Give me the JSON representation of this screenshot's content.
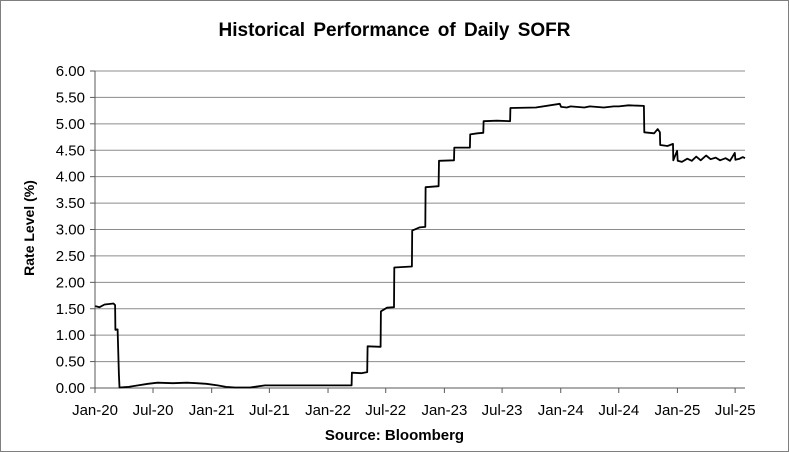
{
  "chart_data": {
    "type": "line",
    "title": "Historical  Performance of Daily  SOFR",
    "ylabel": "Rate Level (%)",
    "xlabel": "",
    "source": "Source: Bloomberg",
    "ylim": [
      0,
      6
    ],
    "xlim": [
      "2020-01-01",
      "2025-08-01"
    ],
    "grid": true,
    "legend": "none",
    "line_color": "#000000",
    "y_ticks": [
      "0.00",
      "0.50",
      "1.00",
      "1.50",
      "2.00",
      "2.50",
      "3.00",
      "3.50",
      "4.00",
      "4.50",
      "5.00",
      "5.50",
      "6.00"
    ],
    "x_ticks": [
      {
        "label": "Jan-20",
        "date": "2020-01-01"
      },
      {
        "label": "Jul-20",
        "date": "2020-07-01"
      },
      {
        "label": "Jan-21",
        "date": "2021-01-01"
      },
      {
        "label": "Jul-21",
        "date": "2021-07-01"
      },
      {
        "label": "Jan-22",
        "date": "2022-01-01"
      },
      {
        "label": "Jul-22",
        "date": "2022-07-01"
      },
      {
        "label": "Jan-23",
        "date": "2023-01-01"
      },
      {
        "label": "Jul-23",
        "date": "2023-07-01"
      },
      {
        "label": "Jan-24",
        "date": "2024-01-01"
      },
      {
        "label": "Jul-24",
        "date": "2024-07-01"
      },
      {
        "label": "Jan-25",
        "date": "2025-01-01"
      },
      {
        "label": "Jul-25",
        "date": "2025-07-01"
      }
    ],
    "series": [
      {
        "values": [
          [
            "2020-01-02",
            1.55
          ],
          [
            "2020-01-15",
            1.53
          ],
          [
            "2020-01-31",
            1.58
          ],
          [
            "2020-02-15",
            1.59
          ],
          [
            "2020-02-28",
            1.6
          ],
          [
            "2020-03-04",
            1.57
          ],
          [
            "2020-03-05",
            1.1
          ],
          [
            "2020-03-12",
            1.11
          ],
          [
            "2020-03-16",
            0.26
          ],
          [
            "2020-03-18",
            0.01
          ],
          [
            "2020-04-15",
            0.02
          ],
          [
            "2020-05-15",
            0.05
          ],
          [
            "2020-06-15",
            0.08
          ],
          [
            "2020-07-15",
            0.1
          ],
          [
            "2020-09-01",
            0.09
          ],
          [
            "2020-10-15",
            0.1
          ],
          [
            "2020-11-15",
            0.09
          ],
          [
            "2020-12-15",
            0.08
          ],
          [
            "2021-01-20",
            0.05
          ],
          [
            "2021-02-15",
            0.02
          ],
          [
            "2021-03-15",
            0.01
          ],
          [
            "2021-05-01",
            0.01
          ],
          [
            "2021-06-17",
            0.05
          ],
          [
            "2021-09-01",
            0.05
          ],
          [
            "2021-12-15",
            0.05
          ],
          [
            "2022-03-16",
            0.05
          ],
          [
            "2022-03-17",
            0.29
          ],
          [
            "2022-04-15",
            0.28
          ],
          [
            "2022-05-04",
            0.3
          ],
          [
            "2022-05-05",
            0.79
          ],
          [
            "2022-06-15",
            0.78
          ],
          [
            "2022-06-16",
            1.45
          ],
          [
            "2022-07-05",
            1.52
          ],
          [
            "2022-07-27",
            1.53
          ],
          [
            "2022-07-28",
            2.28
          ],
          [
            "2022-09-21",
            2.3
          ],
          [
            "2022-09-22",
            2.98
          ],
          [
            "2022-10-15",
            3.04
          ],
          [
            "2022-11-02",
            3.05
          ],
          [
            "2022-11-03",
            3.8
          ],
          [
            "2022-12-14",
            3.82
          ],
          [
            "2022-12-15",
            4.3
          ],
          [
            "2023-01-31",
            4.31
          ],
          [
            "2023-02-01",
            4.55
          ],
          [
            "2023-03-22",
            4.55
          ],
          [
            "2023-03-23",
            4.8
          ],
          [
            "2023-04-15",
            4.82
          ],
          [
            "2023-05-03",
            4.83
          ],
          [
            "2023-05-04",
            5.05
          ],
          [
            "2023-06-15",
            5.06
          ],
          [
            "2023-07-26",
            5.05
          ],
          [
            "2023-07-27",
            5.3
          ],
          [
            "2023-10-15",
            5.31
          ],
          [
            "2023-12-29",
            5.38
          ],
          [
            "2024-01-02",
            5.32
          ],
          [
            "2024-01-20",
            5.31
          ],
          [
            "2024-02-01",
            5.33
          ],
          [
            "2024-03-15",
            5.31
          ],
          [
            "2024-04-01",
            5.33
          ],
          [
            "2024-05-15",
            5.31
          ],
          [
            "2024-06-15",
            5.33
          ],
          [
            "2024-07-01",
            5.33
          ],
          [
            "2024-08-01",
            5.35
          ],
          [
            "2024-09-18",
            5.34
          ],
          [
            "2024-09-19",
            4.84
          ],
          [
            "2024-10-20",
            4.82
          ],
          [
            "2024-10-31",
            4.9
          ],
          [
            "2024-11-07",
            4.84
          ],
          [
            "2024-11-08",
            4.6
          ],
          [
            "2024-12-01",
            4.58
          ],
          [
            "2024-12-18",
            4.62
          ],
          [
            "2024-12-19",
            4.31
          ],
          [
            "2024-12-31",
            4.49
          ],
          [
            "2025-01-02",
            4.3
          ],
          [
            "2025-01-15",
            4.28
          ],
          [
            "2025-02-01",
            4.34
          ],
          [
            "2025-02-15",
            4.3
          ],
          [
            "2025-03-01",
            4.38
          ],
          [
            "2025-03-15",
            4.31
          ],
          [
            "2025-04-01",
            4.4
          ],
          [
            "2025-04-15",
            4.33
          ],
          [
            "2025-05-01",
            4.36
          ],
          [
            "2025-05-15",
            4.31
          ],
          [
            "2025-06-01",
            4.35
          ],
          [
            "2025-06-15",
            4.3
          ],
          [
            "2025-06-30",
            4.45
          ],
          [
            "2025-07-02",
            4.32
          ],
          [
            "2025-07-15",
            4.34
          ],
          [
            "2025-07-25",
            4.37
          ],
          [
            "2025-08-01",
            4.35
          ]
        ]
      }
    ]
  }
}
